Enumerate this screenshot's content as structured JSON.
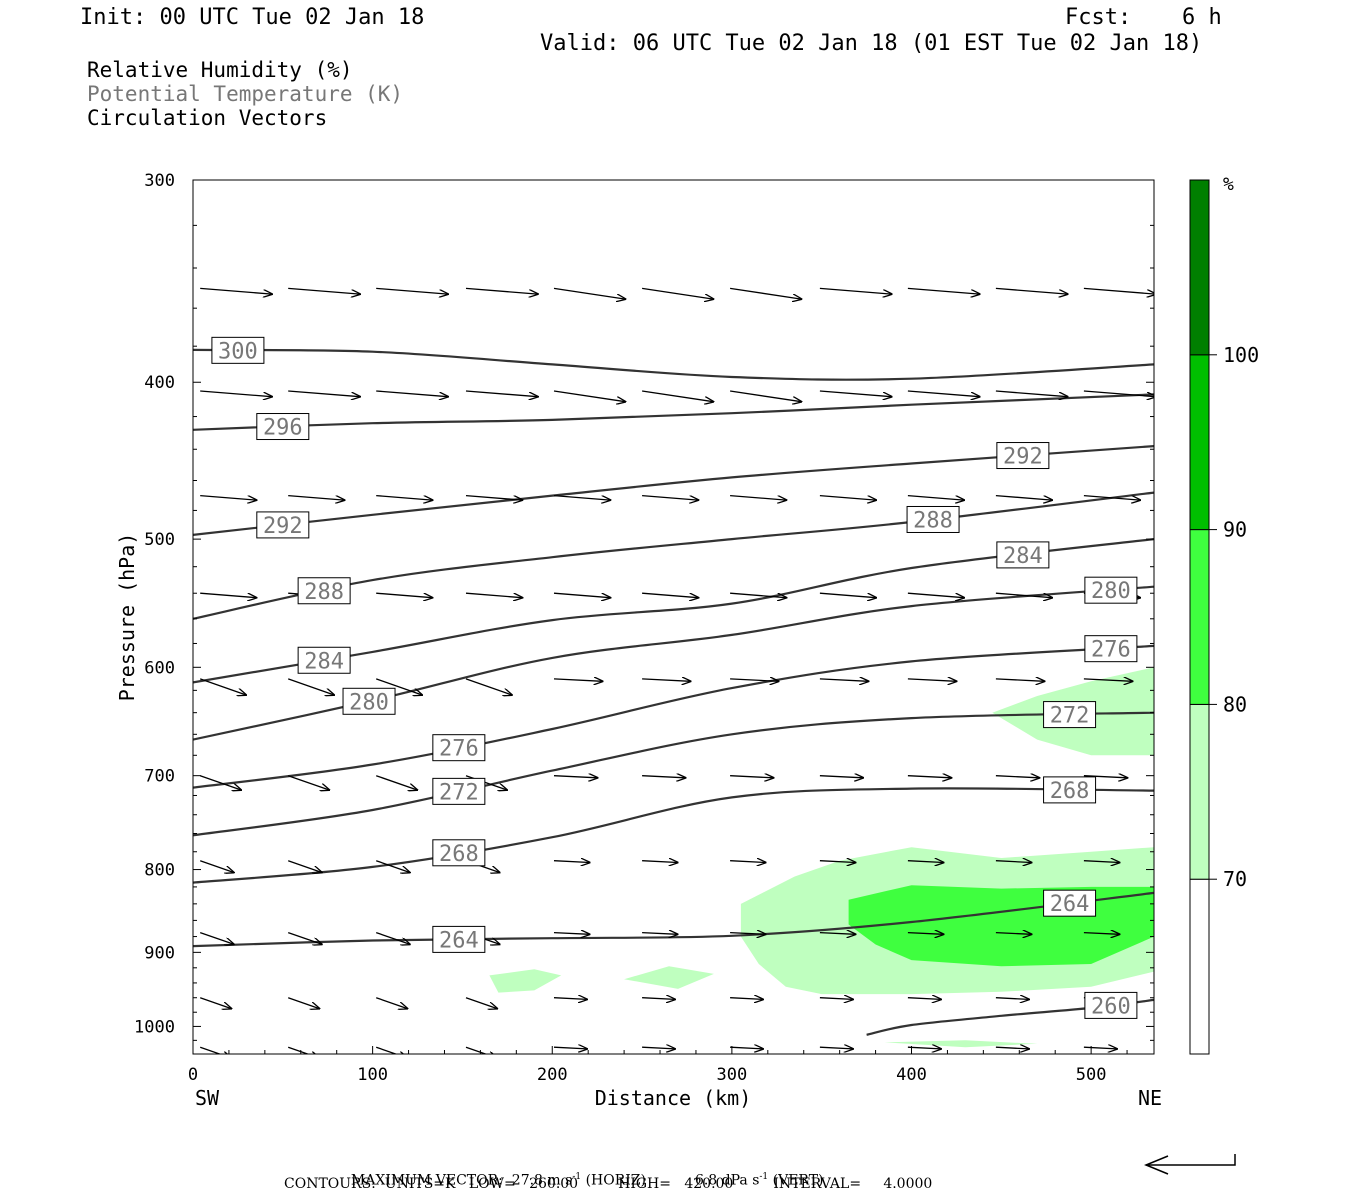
{
  "header": {
    "init": "Init: 00 UTC Tue 02 Jan 18",
    "fcst_label": "Fcst:",
    "fcst_value": "6 h",
    "valid": "Valid: 06 UTC Tue 02 Jan 18 (01 EST Tue 02 Jan 18)"
  },
  "fields": {
    "rh": "Relative Humidity (%)",
    "theta": "Potential Temperature (K)",
    "vectors": "Circulation Vectors"
  },
  "colors": {
    "rh70": "#bfffbf",
    "rh80": "#3fff3f",
    "rh90": "#00bf00",
    "rh100": "#007f00",
    "contour": "#333333",
    "theta_label": "#777777"
  },
  "chart_data": {
    "type": "cross-section",
    "xlabel": "Distance (km)",
    "ylabel": "Pressure (hPa)",
    "x_ticks": [
      0,
      100,
      200,
      300,
      400,
      500
    ],
    "y_ticks": [
      300,
      400,
      500,
      600,
      700,
      800,
      900,
      1000
    ],
    "xlim": [
      0,
      535
    ],
    "ylim": [
      300,
      1040
    ],
    "y_log": true,
    "endpoints": {
      "left": "SW",
      "right": "NE"
    },
    "colorbar": {
      "unit": "%",
      "levels": [
        70,
        80,
        90,
        100
      ]
    },
    "isentropes": [
      {
        "level": 300,
        "points": [
          [
            0,
            382
          ],
          [
            100,
            383
          ],
          [
            200,
            390
          ],
          [
            300,
            397
          ],
          [
            400,
            398
          ],
          [
            535,
            390
          ]
        ]
      },
      {
        "level": 296,
        "points": [
          [
            0,
            428
          ],
          [
            100,
            424
          ],
          [
            200,
            422
          ],
          [
            300,
            418
          ],
          [
            400,
            413
          ],
          [
            535,
            407
          ]
        ]
      },
      {
        "level": 292,
        "points": [
          [
            0,
            497
          ],
          [
            100,
            483
          ],
          [
            200,
            470
          ],
          [
            300,
            458
          ],
          [
            400,
            449
          ],
          [
            535,
            438
          ]
        ]
      },
      {
        "level": 288,
        "points": [
          [
            0,
            560
          ],
          [
            100,
            530
          ],
          [
            200,
            513
          ],
          [
            300,
            500
          ],
          [
            400,
            488
          ],
          [
            535,
            468
          ]
        ]
      },
      {
        "level": 284,
        "points": [
          [
            0,
            613
          ],
          [
            100,
            587
          ],
          [
            200,
            561
          ],
          [
            300,
            548
          ],
          [
            400,
            521
          ],
          [
            535,
            500
          ]
        ]
      },
      {
        "level": 280,
        "points": [
          [
            0,
            665
          ],
          [
            100,
            629
          ],
          [
            200,
            592
          ],
          [
            300,
            573
          ],
          [
            400,
            550
          ],
          [
            535,
            535
          ]
        ]
      },
      {
        "level": 276,
        "points": [
          [
            0,
            712
          ],
          [
            100,
            689
          ],
          [
            200,
            655
          ],
          [
            300,
            618
          ],
          [
            400,
            595
          ],
          [
            535,
            582
          ]
        ]
      },
      {
        "level": 272,
        "points": [
          [
            0,
            762
          ],
          [
            100,
            735
          ],
          [
            200,
            695
          ],
          [
            300,
            660
          ],
          [
            400,
            645
          ],
          [
            535,
            640
          ]
        ]
      },
      {
        "level": 268,
        "points": [
          [
            0,
            815
          ],
          [
            100,
            797
          ],
          [
            200,
            764
          ],
          [
            300,
            722
          ],
          [
            400,
            713
          ],
          [
            535,
            715
          ]
        ]
      },
      {
        "level": 264,
        "points": [
          [
            0,
            892
          ],
          [
            100,
            885
          ],
          [
            200,
            882
          ],
          [
            300,
            879
          ],
          [
            400,
            862
          ],
          [
            535,
            827
          ]
        ]
      },
      {
        "level": 260,
        "points": [
          [
            375,
            1012
          ],
          [
            400,
            998
          ],
          [
            450,
            985
          ],
          [
            500,
            974
          ],
          [
            535,
            963
          ]
        ]
      }
    ],
    "rh_regions": [
      {
        "rh": 70,
        "points": [
          [
            305,
            840
          ],
          [
            335,
            808
          ],
          [
            360,
            790
          ],
          [
            400,
            775
          ],
          [
            450,
            787
          ],
          [
            500,
            780
          ],
          [
            535,
            775
          ],
          [
            535,
            925
          ],
          [
            500,
            945
          ],
          [
            450,
            952
          ],
          [
            400,
            955
          ],
          [
            350,
            955
          ],
          [
            330,
            945
          ],
          [
            315,
            915
          ],
          [
            305,
            880
          ]
        ]
      },
      {
        "rh": 80,
        "points": [
          [
            365,
            835
          ],
          [
            400,
            818
          ],
          [
            450,
            822
          ],
          [
            500,
            820
          ],
          [
            535,
            820
          ],
          [
            535,
            880
          ],
          [
            500,
            915
          ],
          [
            450,
            918
          ],
          [
            400,
            910
          ],
          [
            380,
            890
          ],
          [
            365,
            865
          ]
        ]
      },
      {
        "rh": 70,
        "points": [
          [
            445,
            640
          ],
          [
            470,
            625
          ],
          [
            500,
            612
          ],
          [
            535,
            600
          ],
          [
            535,
            680
          ],
          [
            500,
            680
          ],
          [
            470,
            665
          ]
        ]
      },
      {
        "rh": 70,
        "points": [
          [
            165,
            930
          ],
          [
            190,
            922
          ],
          [
            205,
            930
          ],
          [
            190,
            950
          ],
          [
            170,
            953
          ]
        ]
      },
      {
        "rh": 70,
        "points": [
          [
            240,
            935
          ],
          [
            265,
            918
          ],
          [
            290,
            928
          ],
          [
            270,
            948
          ]
        ]
      },
      {
        "rh": 70,
        "points": [
          [
            385,
            1023
          ],
          [
            430,
            1020
          ],
          [
            470,
            1025
          ],
          [
            430,
            1030
          ]
        ]
      }
    ],
    "maximum_vector": {
      "horizontal": "27.8 m s-1",
      "vertical": "6.8 dPa s-1"
    },
    "contours": {
      "units": "K",
      "low": "260.00",
      "high": "420.00",
      "interval": "4.0000"
    }
  },
  "footer": {
    "line1a": "MAXIMUM VECTOR:  27.8 m s",
    "line1b": "(HORIZ)",
    "line1c": "6.8 dPa s",
    "line1d": "(VERT)",
    "sup": "-1",
    "line2": "CONTOURS:  UNITS=K   LOW=   260.00         HIGH=   420.00         INTERVAL=     4.0000"
  }
}
